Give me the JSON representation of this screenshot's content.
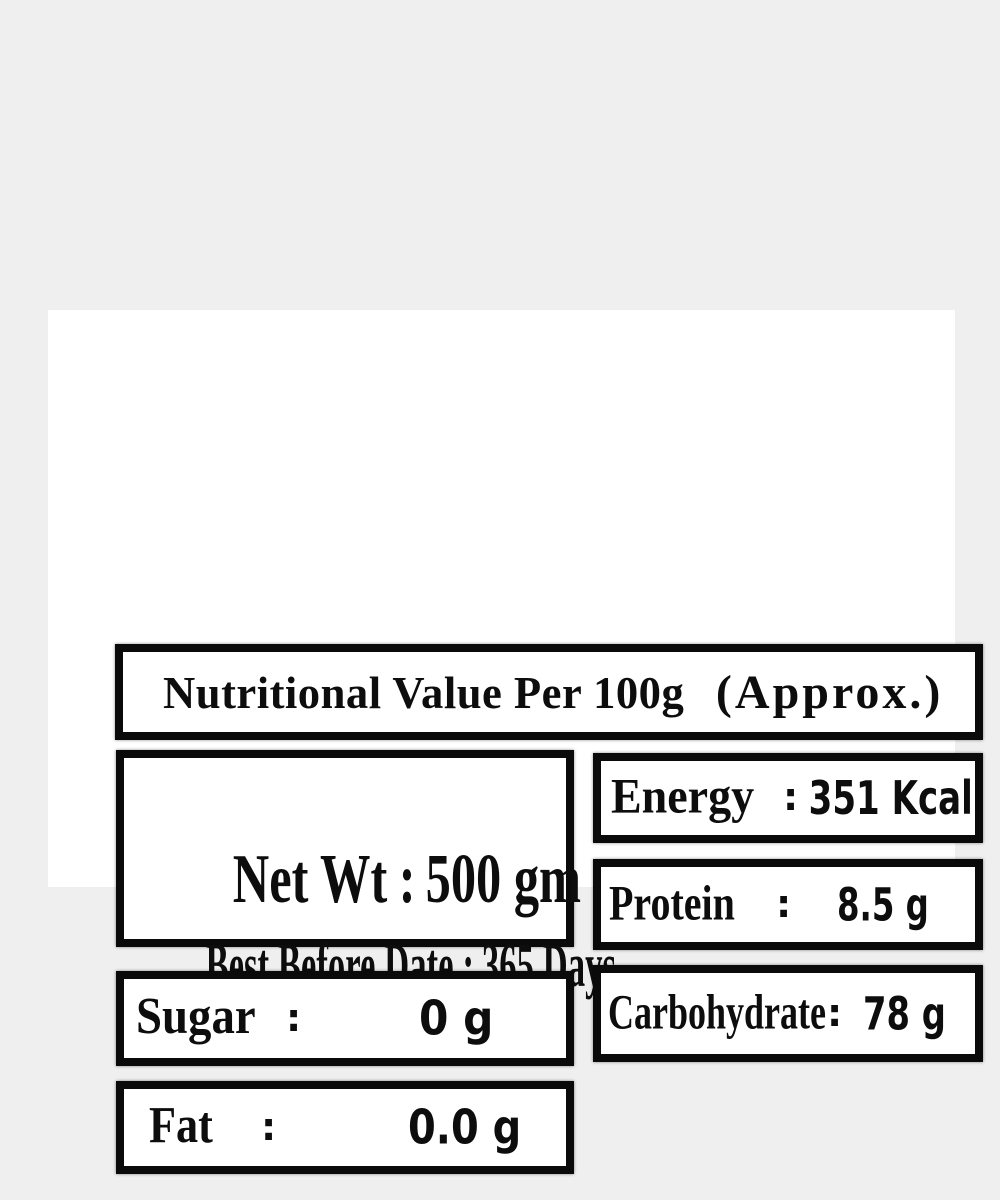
{
  "colors": {
    "background": "#efefef",
    "panel": "#ffffff",
    "box_border": "#0a0a0a",
    "text": "#0d0d0d"
  },
  "title": {
    "main": "Nutritional Value Per 100g",
    "approx": "(Approx.)"
  },
  "net_weight": {
    "label": "Net Wt",
    "sep": ":",
    "value": "500 gm"
  },
  "best_before": {
    "label": "Best Before Date",
    "sep": ":",
    "value": "365 Days"
  },
  "nutrients": {
    "energy": {
      "label": "Energy",
      "sep": ":",
      "value": "351 Kcal"
    },
    "protein": {
      "label": "Protein",
      "sep": ":",
      "value": "8.5 g"
    },
    "sugar": {
      "label": "Sugar",
      "sep": ":",
      "value": "0 g"
    },
    "carbohydrate": {
      "label": "Carbohydrate",
      "sep": ":",
      "value": "78 g"
    },
    "fat": {
      "label": "Fat",
      "sep": ":",
      "value": "0.0 g"
    }
  }
}
